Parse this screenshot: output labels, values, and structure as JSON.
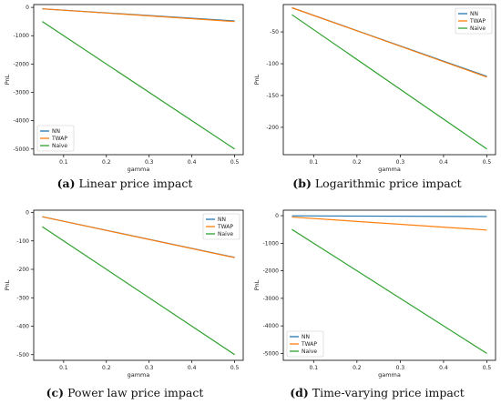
{
  "colors": {
    "NN": "#1f77b4",
    "TWAP": "#ff7f0e",
    "Naive": "#2ca02c"
  },
  "chart_data": [
    {
      "type": "line",
      "caption_letter": "(a)",
      "caption_text": "Linear price impact",
      "xlabel": "gamma",
      "ylabel": "PnL",
      "xlim": [
        0.03,
        0.52
      ],
      "ylim": [
        -5200,
        100
      ],
      "xticks": [
        0.1,
        0.2,
        0.3,
        0.4,
        0.5
      ],
      "yticks": [
        0,
        -1000,
        -2000,
        -3000,
        -4000,
        -5000
      ],
      "legend": "bottom-left",
      "series": [
        {
          "name": "NN",
          "color": "#1f77b4",
          "x": [
            0.05,
            0.5
          ],
          "y": [
            -50,
            -480
          ]
        },
        {
          "name": "TWAP",
          "color": "#ff7f0e",
          "x": [
            0.05,
            0.5
          ],
          "y": [
            -50,
            -500
          ]
        },
        {
          "name": "Naive",
          "color": "#2ca02c",
          "x": [
            0.05,
            0.5
          ],
          "y": [
            -500,
            -5000
          ]
        }
      ]
    },
    {
      "type": "line",
      "caption_letter": "(b)",
      "caption_text": "Logarithmic price impact",
      "xlabel": "gamma",
      "ylabel": "PnL",
      "xlim": [
        0.03,
        0.52
      ],
      "ylim": [
        -243,
        -7
      ],
      "xticks": [
        0.1,
        0.2,
        0.3,
        0.4,
        0.5
      ],
      "yticks": [
        -50,
        -100,
        -150,
        -200
      ],
      "legend": "top-right",
      "series": [
        {
          "name": "NN",
          "color": "#1f77b4",
          "x": [
            0.05,
            0.5
          ],
          "y": [
            -12,
            -120
          ]
        },
        {
          "name": "TWAP",
          "color": "#ff7f0e",
          "x": [
            0.05,
            0.5
          ],
          "y": [
            -12,
            -121
          ]
        },
        {
          "name": "Naive",
          "color": "#2ca02c",
          "x": [
            0.05,
            0.5
          ],
          "y": [
            -23,
            -234
          ]
        }
      ]
    },
    {
      "type": "line",
      "caption_letter": "(c)",
      "caption_text": "Power law price impact",
      "xlabel": "gamma",
      "ylabel": "PnL",
      "xlim": [
        0.03,
        0.52
      ],
      "ylim": [
        -520,
        8
      ],
      "xticks": [
        0.1,
        0.2,
        0.3,
        0.4,
        0.5
      ],
      "yticks": [
        0,
        -100,
        -200,
        -300,
        -400,
        -500
      ],
      "legend": "top-right",
      "series": [
        {
          "name": "NN",
          "color": "#1f77b4",
          "x": [
            0.05,
            0.5
          ],
          "y": [
            -15,
            -158
          ]
        },
        {
          "name": "TWAP",
          "color": "#ff7f0e",
          "x": [
            0.05,
            0.5
          ],
          "y": [
            -15,
            -159
          ]
        },
        {
          "name": "Naive",
          "color": "#2ca02c",
          "x": [
            0.05,
            0.5
          ],
          "y": [
            -50,
            -500
          ]
        }
      ]
    },
    {
      "type": "line",
      "caption_letter": "(d)",
      "caption_text": "Time-varying price impact",
      "xlabel": "gamma",
      "ylabel": "PnL",
      "xlim": [
        0.03,
        0.52
      ],
      "ylim": [
        -5250,
        200
      ],
      "xticks": [
        0.1,
        0.2,
        0.3,
        0.4,
        0.5
      ],
      "yticks": [
        0,
        -1000,
        -2000,
        -3000,
        -4000,
        -5000
      ],
      "legend": "bottom-left",
      "series": [
        {
          "name": "NN",
          "color": "#1f77b4",
          "x": [
            0.05,
            0.5
          ],
          "y": [
            -5,
            -30
          ]
        },
        {
          "name": "TWAP",
          "color": "#ff7f0e",
          "x": [
            0.05,
            0.5
          ],
          "y": [
            -50,
            -520
          ]
        },
        {
          "name": "Naive",
          "color": "#2ca02c",
          "x": [
            0.05,
            0.5
          ],
          "y": [
            -500,
            -5000
          ]
        }
      ]
    }
  ]
}
